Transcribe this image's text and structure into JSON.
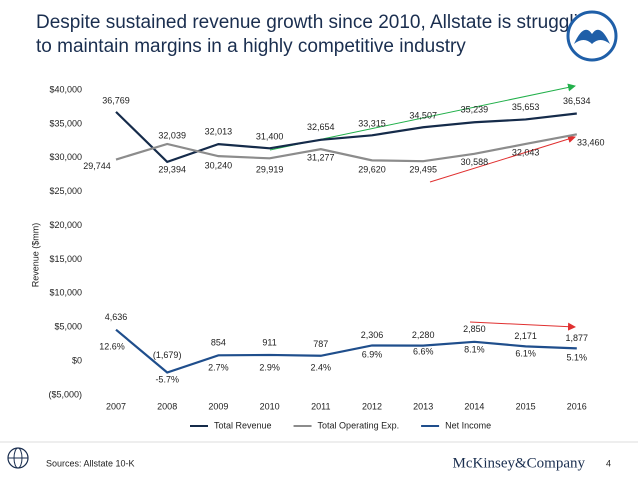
{
  "chart_data": {
    "type": "line",
    "title": "Despite sustained revenue growth since 2010, Allstate is struggling to maintain margins in a highly competitive industry",
    "y_label": "Revenue ($mm)",
    "categories": [
      "2007",
      "2008",
      "2009",
      "2010",
      "2011",
      "2012",
      "2013",
      "2014",
      "2015",
      "2016"
    ],
    "series": [
      {
        "name": "Total Revenue",
        "color": "#152b4a",
        "values": [
          36769,
          29394,
          32013,
          31400,
          32654,
          33315,
          34507,
          35239,
          35653,
          36534
        ],
        "value_labels": [
          "36,769",
          "29,394",
          "32,013",
          "31,400",
          "32,654",
          "33,315",
          "34,507",
          "35,239",
          "35,653",
          "36,534"
        ]
      },
      {
        "name": "Total Operating Exp.",
        "color": "#8c8c8c",
        "values": [
          29744,
          32039,
          30240,
          29919,
          31277,
          29620,
          29495,
          30588,
          32043,
          33460
        ],
        "value_labels": [
          "29,744",
          "32,039",
          "30,240",
          "29,919",
          "31,277",
          "29,620",
          "29,495",
          "30,588",
          "32,043",
          "33,460"
        ]
      },
      {
        "name": "Net Income",
        "color": "#1f4e8c",
        "values": [
          4636,
          -1679,
          854,
          911,
          787,
          2306,
          2280,
          2850,
          2171,
          1877
        ],
        "value_labels": [
          "4,636",
          "(1,679)",
          "854",
          "911",
          "787",
          "2,306",
          "2,280",
          "2,850",
          "2,171",
          "1,877"
        ]
      }
    ],
    "margin_labels": [
      "12.6%",
      "-5.7%",
      "2.7%",
      "2.9%",
      "2.4%",
      "6.9%",
      "6.6%",
      "8.1%",
      "6.1%",
      "5.1%"
    ],
    "ylim": [
      -5000,
      40000
    ],
    "yticks": [
      {
        "value": -5000,
        "label": "($5,000)"
      },
      {
        "value": 0,
        "label": "$0"
      },
      {
        "value": 5000,
        "label": "$5,000"
      },
      {
        "value": 10000,
        "label": "$10,000"
      },
      {
        "value": 15000,
        "label": "$15,000"
      },
      {
        "value": 20000,
        "label": "$20,000"
      },
      {
        "value": 25000,
        "label": "$25,000"
      },
      {
        "value": 30000,
        "label": "$30,000"
      },
      {
        "value": 35000,
        "label": "$35,000"
      },
      {
        "value": 40000,
        "label": "$40,000"
      }
    ],
    "grid": false,
    "legend": "bottom"
  },
  "footer": {
    "source": "Sources: Allstate 10-K",
    "brand": "McKinsey&Company",
    "page": "4"
  }
}
